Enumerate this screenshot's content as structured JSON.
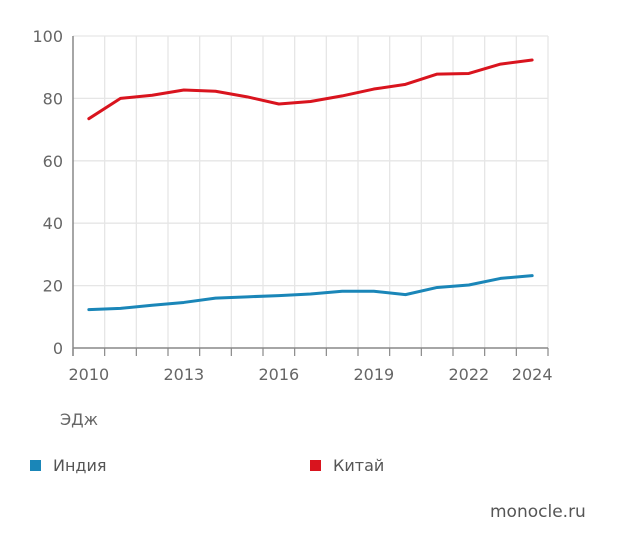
{
  "chart_data": {
    "type": "line",
    "unit_label": "ЭДж",
    "x": [
      2010,
      2011,
      2012,
      2013,
      2014,
      2015,
      2016,
      2017,
      2018,
      2019,
      2020,
      2021,
      2022,
      2023,
      2024
    ],
    "x_tick_labels": [
      "2010",
      "2013",
      "2016",
      "2019",
      "2022",
      "2024"
    ],
    "y_ticks": [
      "0",
      "20",
      "40",
      "60",
      "80",
      "100"
    ],
    "ylim": [
      0,
      100
    ],
    "grid": true,
    "legend_placement": "bottom",
    "series": [
      {
        "name": "Индия",
        "color": "#1a86b8",
        "values": [
          12.3,
          12.7,
          13.7,
          14.6,
          16.0,
          16.4,
          16.8,
          17.3,
          18.2,
          18.2,
          17.1,
          19.4,
          20.2,
          22.3,
          23.2
        ]
      },
      {
        "name": "Китай",
        "color": "#d9141e",
        "values": [
          73.5,
          80.0,
          81.0,
          82.7,
          82.3,
          80.5,
          78.2,
          79.0,
          80.8,
          83.0,
          84.5,
          87.8,
          88.0,
          91.0,
          92.3
        ]
      }
    ]
  },
  "source": "monocle.ru"
}
